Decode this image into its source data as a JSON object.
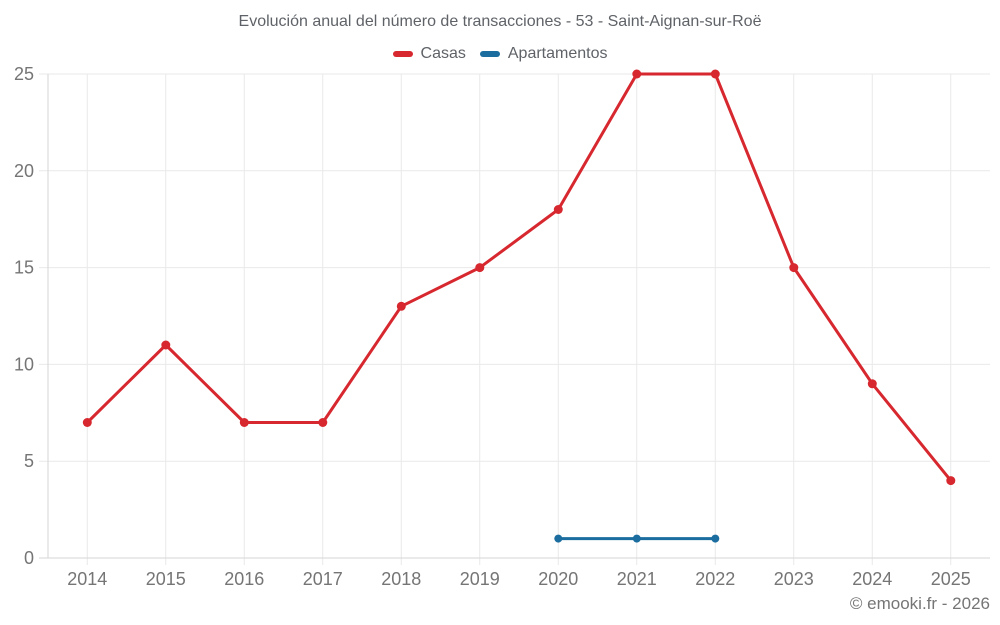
{
  "page": {
    "footer_credit": "© emooki.fr - 2026"
  },
  "chart_data": {
    "type": "line",
    "title": "Evolución anual del número de transacciones - 53 - Saint-Aignan-sur-Roë",
    "categories": [
      "2014",
      "2015",
      "2016",
      "2017",
      "2018",
      "2019",
      "2020",
      "2021",
      "2022",
      "2023",
      "2024",
      "2025"
    ],
    "series": [
      {
        "name": "Casas",
        "color": "#d7282f",
        "marker_radius": 4.5,
        "values": [
          7,
          11,
          7,
          7,
          13,
          15,
          18,
          25,
          25,
          15,
          9,
          4
        ]
      },
      {
        "name": "Apartamentos",
        "color": "#1a6d9e",
        "marker_radius": 4,
        "values": [
          null,
          null,
          null,
          null,
          null,
          null,
          1,
          1,
          1,
          null,
          null,
          null
        ]
      }
    ],
    "xlabel": "",
    "ylabel": "",
    "ylim": [
      0,
      25
    ],
    "yticks": [
      0,
      5,
      10,
      15,
      20,
      25
    ],
    "grid": true,
    "legend_position": "top",
    "colors": {
      "grid": "#e9e9e9",
      "axis": "#d6d6d6",
      "tick_label": "#757575",
      "title": "#5f6368",
      "background": "#ffffff"
    }
  }
}
